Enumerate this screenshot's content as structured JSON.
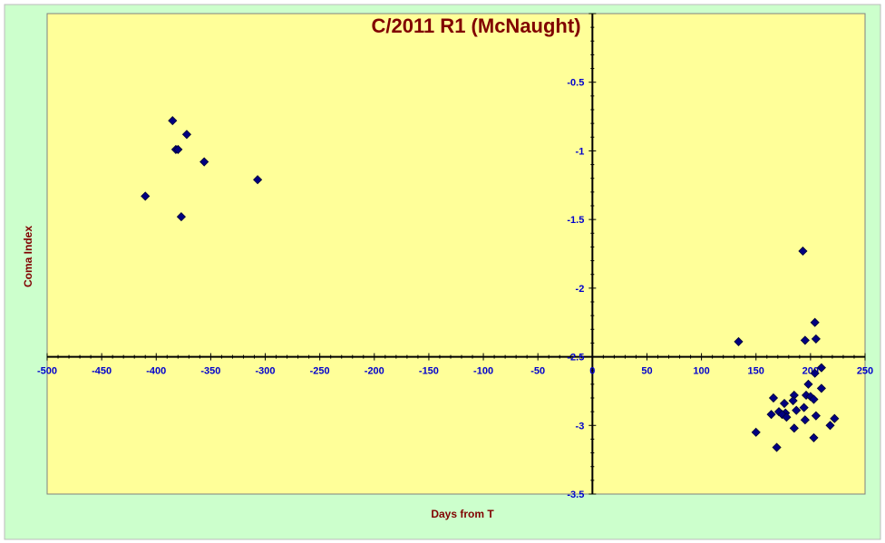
{
  "chart_data": {
    "type": "scatter",
    "title": "C/2011 R1 (McNaught)",
    "xlabel": "Days from T",
    "ylabel": "Coma Index",
    "xlim": [
      -500,
      250
    ],
    "ylim": [
      -3.5,
      0
    ],
    "x_ticks": [
      -500,
      -450,
      -400,
      -350,
      -300,
      -250,
      -200,
      -150,
      -100,
      -50,
      0,
      50,
      100,
      150,
      200,
      250
    ],
    "y_ticks": [
      -0.5,
      -1,
      -1.5,
      -2,
      -2.5,
      -3,
      -3.5
    ],
    "x_axis_crosses_y": -2.5,
    "y_axis_crosses_x": 0,
    "grid": false,
    "legend": "none",
    "colors": {
      "outer_background": "#ccffcc",
      "plot_background": "#ffff99",
      "marker": "#000080",
      "axis": "#000000",
      "tick_labels": "#0000cc",
      "titles": "#800000"
    },
    "points": [
      {
        "x": -385,
        "y": -0.78
      },
      {
        "x": -372,
        "y": -0.88
      },
      {
        "x": -382,
        "y": -0.99
      },
      {
        "x": -380,
        "y": -0.99
      },
      {
        "x": -356,
        "y": -1.08
      },
      {
        "x": -307,
        "y": -1.21
      },
      {
        "x": -410,
        "y": -1.33
      },
      {
        "x": -377,
        "y": -1.48
      },
      {
        "x": 193,
        "y": -1.73
      },
      {
        "x": 204,
        "y": -2.25
      },
      {
        "x": 134,
        "y": -2.39
      },
      {
        "x": 195,
        "y": -2.38
      },
      {
        "x": 205,
        "y": -2.37
      },
      {
        "x": 210,
        "y": -2.58
      },
      {
        "x": 204,
        "y": -2.62
      },
      {
        "x": 198,
        "y": -2.7
      },
      {
        "x": 210,
        "y": -2.73
      },
      {
        "x": 166,
        "y": -2.8
      },
      {
        "x": 185,
        "y": -2.78
      },
      {
        "x": 196,
        "y": -2.78
      },
      {
        "x": 200,
        "y": -2.79
      },
      {
        "x": 203,
        "y": -2.81
      },
      {
        "x": 184,
        "y": -2.82
      },
      {
        "x": 176,
        "y": -2.84
      },
      {
        "x": 194,
        "y": -2.87
      },
      {
        "x": 187,
        "y": -2.89
      },
      {
        "x": 171,
        "y": -2.9
      },
      {
        "x": 177,
        "y": -2.91
      },
      {
        "x": 164,
        "y": -2.92
      },
      {
        "x": 174,
        "y": -2.92
      },
      {
        "x": 178,
        "y": -2.94
      },
      {
        "x": 205,
        "y": -2.93
      },
      {
        "x": 222,
        "y": -2.95
      },
      {
        "x": 195,
        "y": -2.96
      },
      {
        "x": 218,
        "y": -3.0
      },
      {
        "x": 185,
        "y": -3.02
      },
      {
        "x": 150,
        "y": -3.05
      },
      {
        "x": 203,
        "y": -3.09
      },
      {
        "x": 169,
        "y": -3.16
      }
    ]
  }
}
